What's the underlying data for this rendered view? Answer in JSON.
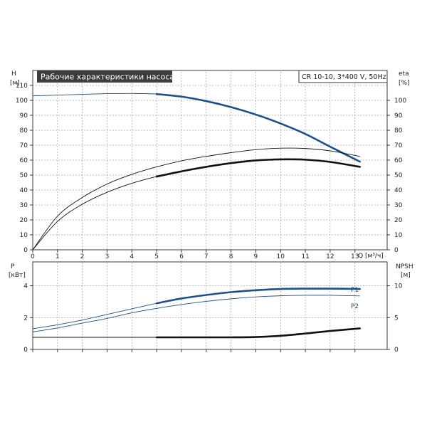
{
  "chart_data": [
    {
      "type": "line",
      "title": "Рабочие характеристики насоса",
      "model": "CR 10-10, 3*400 V, 50Hz",
      "y_left": {
        "label": "H",
        "unit": "[м]",
        "range": [
          0,
          120
        ],
        "ticks": [
          0,
          10,
          20,
          30,
          40,
          50,
          60,
          70,
          80,
          90,
          100,
          110
        ]
      },
      "y_right": {
        "label": "eta",
        "unit": "[%]",
        "range": [
          0,
          120
        ],
        "ticks": [
          0,
          10,
          20,
          30,
          40,
          50,
          60,
          70,
          80,
          90,
          100
        ]
      },
      "x": {
        "label": "Q",
        "unit": "[м³/ч]",
        "range": [
          0,
          14.3
        ],
        "ticks": [
          0,
          1,
          2,
          3,
          4,
          5,
          6,
          7,
          8,
          9,
          10,
          11,
          12,
          13
        ]
      },
      "grid": true,
      "series": [
        {
          "axis": "left",
          "color": "#1b4f8f",
          "x": [
            0,
            1,
            2,
            3,
            4,
            5,
            6,
            7,
            8,
            9,
            10,
            11,
            12,
            13.2
          ],
          "values": [
            103,
            103.5,
            104,
            104.5,
            104.6,
            104.2,
            102.5,
            99.5,
            95.5,
            90.5,
            84.5,
            77.5,
            69,
            59
          ],
          "bold_from": 5
        },
        {
          "axis": "right",
          "color": "#111111",
          "x": [
            0,
            1,
            2,
            3,
            4,
            5,
            6,
            7,
            8,
            9,
            10,
            11,
            12,
            13.2
          ],
          "values": [
            0,
            19,
            30.5,
            38.5,
            44.5,
            49,
            52.5,
            55.5,
            58,
            59.8,
            60.5,
            60.3,
            58.8,
            55.5
          ],
          "bold_from": 5
        },
        {
          "axis": "right",
          "color": "#111111",
          "x": [
            0,
            1,
            2,
            3,
            4,
            5,
            6,
            7,
            8,
            9,
            10,
            11,
            12,
            13.2
          ],
          "values": [
            0,
            22.5,
            35,
            44,
            50.5,
            55.5,
            59.5,
            62.5,
            65,
            67,
            68,
            67.8,
            66.2,
            62.5
          ],
          "bold_from": 99
        }
      ]
    },
    {
      "type": "line",
      "y_left": {
        "label": "P",
        "unit": "[кВт]",
        "range": [
          0,
          5.5
        ],
        "ticks": [
          0,
          2,
          4
        ]
      },
      "y_right": {
        "label": "NPSH",
        "unit": "[м]",
        "range": [
          0,
          13.75
        ],
        "ticks": [
          0,
          5,
          10
        ]
      },
      "x": {
        "range": [
          0,
          14.3
        ]
      },
      "grid": true,
      "series": [
        {
          "name": "P1",
          "axis": "left",
          "color": "#1b4f8f",
          "x": [
            0,
            1,
            2,
            3,
            4,
            5,
            6,
            7,
            8,
            9,
            10,
            11,
            12,
            13.2
          ],
          "values": [
            1.3,
            1.55,
            1.85,
            2.2,
            2.55,
            2.9,
            3.2,
            3.42,
            3.6,
            3.72,
            3.8,
            3.82,
            3.82,
            3.8
          ],
          "bold_from": 5
        },
        {
          "name": "P2",
          "axis": "left",
          "color": "#1b4f8f",
          "x": [
            0,
            1,
            2,
            3,
            4,
            5,
            6,
            7,
            8,
            9,
            10,
            11,
            12,
            13.2
          ],
          "values": [
            1.1,
            1.35,
            1.65,
            1.95,
            2.3,
            2.58,
            2.82,
            3.02,
            3.18,
            3.3,
            3.37,
            3.4,
            3.4,
            3.36
          ],
          "bold_from": 99
        },
        {
          "axis": "right",
          "color": "#111111",
          "x": [
            0,
            1,
            2,
            3,
            4,
            5,
            6,
            7,
            8,
            9,
            10,
            11,
            12,
            13.2
          ],
          "values": [
            1.9,
            1.9,
            1.9,
            1.9,
            1.9,
            1.9,
            1.9,
            1.9,
            1.9,
            1.95,
            2.15,
            2.5,
            2.9,
            3.3
          ],
          "bold_from": 5
        }
      ]
    }
  ]
}
